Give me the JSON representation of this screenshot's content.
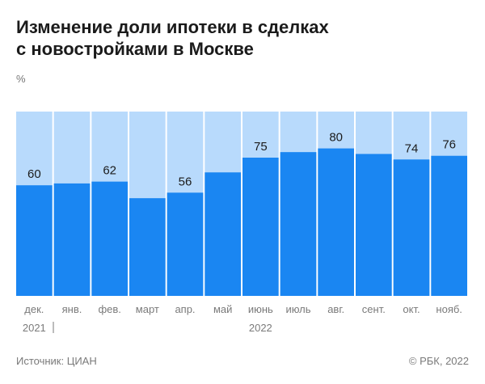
{
  "header": {
    "title_line1": "Изменение доли ипотеки в сделках",
    "title_line2": "с новостройками в Москве",
    "unit": "%"
  },
  "footer": {
    "source": "Источник: ЦИАН",
    "copyright": "© РБК, 2022"
  },
  "colors": {
    "bar": "#1a86f2",
    "background_bar": "#b8dafc",
    "separator": "#ffffff",
    "text": "#1b1b1b",
    "muted": "#7a7a7a"
  },
  "chart_data": {
    "type": "bar",
    "title": "Изменение доли ипотеки в сделках с новостройками в Москве",
    "ylabel": "%",
    "ylim": [
      0,
      100
    ],
    "categories": [
      "дек.",
      "янв.",
      "фев.",
      "март",
      "апр.",
      "май",
      "июнь",
      "июль",
      "авг.",
      "сент.",
      "окт.",
      "нояб."
    ],
    "year_labels": [
      {
        "category_index": 0,
        "label": "2021"
      },
      {
        "category_index": 6,
        "label": "2022"
      }
    ],
    "values": [
      60,
      61,
      62,
      53,
      56,
      67,
      75,
      78,
      80,
      77,
      74,
      76
    ],
    "data_labels": {
      "0": "60",
      "2": "62",
      "4": "56",
      "6": "75",
      "8": "80",
      "10": "74",
      "11": "76"
    },
    "grid": false,
    "legend": "none"
  }
}
